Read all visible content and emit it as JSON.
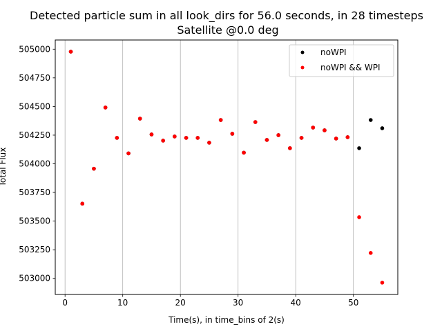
{
  "chart_data": {
    "type": "scatter",
    "title": "Detected particle sum in all look_dirs for 56.0 seconds, in 28 timesteps",
    "subtitle": "Satellite @0.0 deg",
    "xlabel": "Time(s), in time_bins of 2(s)",
    "ylabel": "Total Flux",
    "xlim": [
      -1.7,
      57.7
    ],
    "ylim": [
      502860,
      505080
    ],
    "xticks": [
      0,
      10,
      20,
      30,
      40,
      50
    ],
    "yticks": [
      503000,
      503250,
      503500,
      503750,
      504000,
      504250,
      504500,
      504750,
      505000
    ],
    "grid": "vertical lines at x ticks",
    "legend_position": "top-right",
    "series": [
      {
        "name": "noWPI",
        "color": "#000000",
        "x": [
          1,
          3,
          5,
          7,
          9,
          11,
          13,
          15,
          17,
          19,
          21,
          23,
          25,
          27,
          29,
          31,
          33,
          35,
          37,
          39,
          41,
          43,
          45,
          47,
          49,
          51,
          53,
          55
        ],
        "y": [
          504978,
          503652,
          503957,
          504491,
          504226,
          504091,
          504394,
          504256,
          504202,
          504238,
          504226,
          504226,
          504184,
          504382,
          504262,
          504097,
          504364,
          504208,
          504250,
          504136,
          504226,
          504316,
          504292,
          504220,
          504232,
          504136,
          504382,
          504310
        ]
      },
      {
        "name": "noWPI && WPI",
        "color": "#ff0000",
        "x": [
          1,
          3,
          5,
          7,
          9,
          11,
          13,
          15,
          17,
          19,
          21,
          23,
          25,
          27,
          29,
          31,
          33,
          35,
          37,
          39,
          41,
          43,
          45,
          47,
          49,
          51,
          53,
          55
        ],
        "y": [
          504978,
          503652,
          503957,
          504491,
          504226,
          504091,
          504394,
          504256,
          504202,
          504238,
          504226,
          504226,
          504184,
          504382,
          504262,
          504097,
          504364,
          504208,
          504250,
          504136,
          504226,
          504316,
          504292,
          504220,
          504232,
          503534,
          503222,
          502963
        ]
      }
    ]
  }
}
